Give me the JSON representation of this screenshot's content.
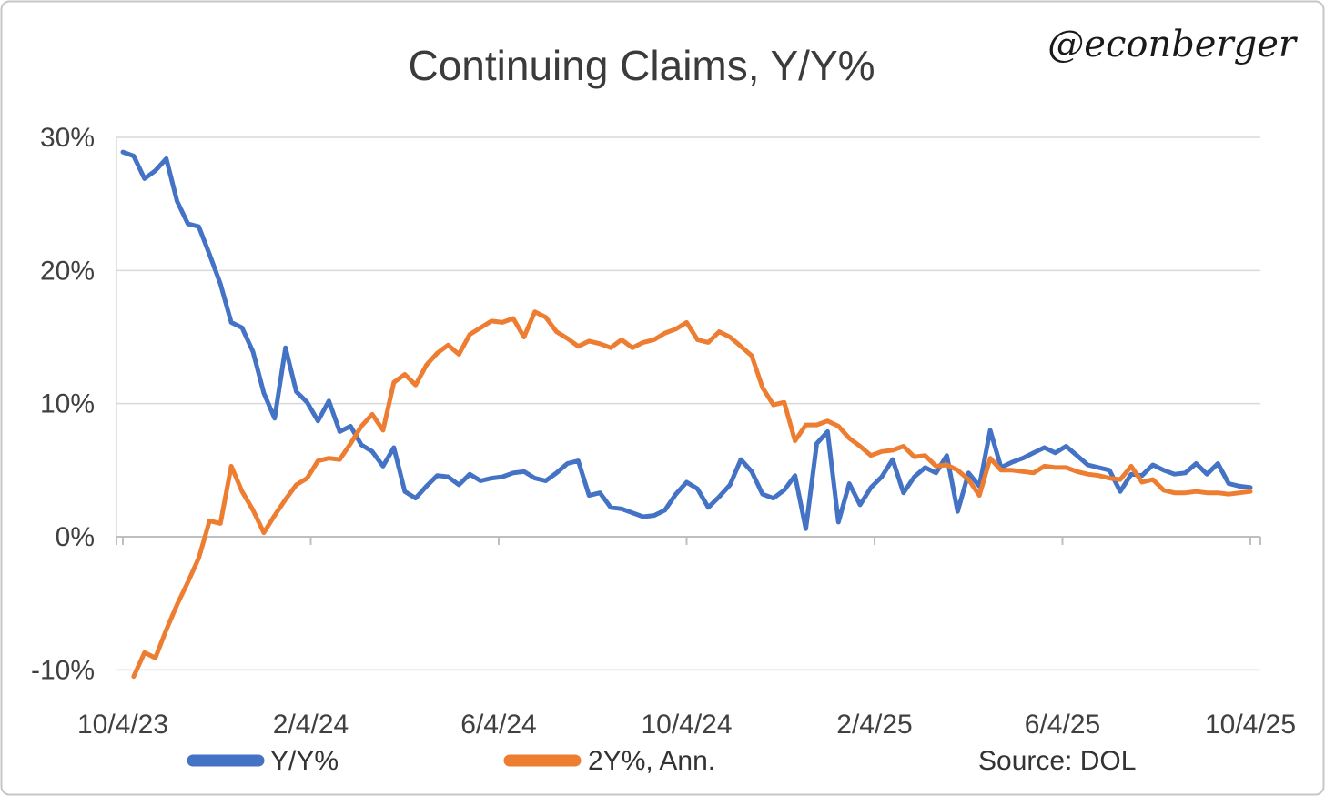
{
  "title": "Continuing Claims, Y/Y%",
  "watermark": "@econberger",
  "source": "Source: DOL",
  "legend": {
    "items": [
      {
        "label": "Y/Y%",
        "color": "#4472C4"
      },
      {
        "label": "2Y%, Ann.",
        "color": "#ED7D31"
      }
    ],
    "position": "bottom"
  },
  "colors": {
    "series_yy": "#4472C4",
    "series_2y": "#ED7D31",
    "gridline": "#D9D9D9",
    "axis": "#BFBFBF",
    "text": "#404040",
    "border": "#C8C6C4",
    "background": "#FFFFFF"
  },
  "chart_data": {
    "type": "line",
    "title": "Continuing Claims, Y/Y%",
    "xlabel": "",
    "ylabel": "",
    "x_unit": "weekly, 10/4/23 through 10/4/25",
    "x_tick_labels": [
      "10/4/23",
      "2/4/24",
      "6/4/24",
      "10/4/24",
      "2/4/25",
      "6/4/25",
      "10/4/25"
    ],
    "y_tick_labels": [
      "30%",
      "20%",
      "10%",
      "0%",
      "-10%"
    ],
    "y_tick_values": [
      30,
      20,
      10,
      0,
      -10
    ],
    "ylim": [
      -10.8,
      30
    ],
    "grid": true,
    "legend_position": "bottom",
    "series": [
      {
        "name": "Y/Y%",
        "color": "#4472C4",
        "values": [
          28.9,
          28.6,
          26.9,
          27.5,
          28.4,
          25.2,
          23.5,
          23.3,
          21.2,
          19.0,
          16.1,
          15.7,
          13.9,
          10.8,
          8.9,
          14.2,
          10.9,
          10.1,
          8.7,
          10.2,
          7.9,
          8.3,
          6.9,
          6.4,
          5.3,
          6.7,
          3.4,
          2.9,
          3.8,
          4.6,
          4.5,
          3.9,
          4.7,
          4.2,
          4.4,
          4.5,
          4.8,
          4.9,
          4.4,
          4.2,
          4.8,
          5.5,
          5.7,
          3.1,
          3.3,
          2.2,
          2.1,
          1.8,
          1.5,
          1.6,
          2.0,
          3.2,
          4.1,
          3.6,
          2.2,
          3.0,
          3.9,
          5.8,
          4.9,
          3.2,
          2.9,
          3.5,
          4.6,
          0.6,
          7.0,
          7.9,
          1.1,
          4.0,
          2.4,
          3.7,
          4.5,
          5.8,
          3.3,
          4.5,
          5.2,
          4.8,
          6.1,
          1.9,
          4.8,
          3.8,
          8.0,
          5.2,
          5.6,
          5.9,
          6.3,
          6.7,
          6.3,
          6.8,
          6.1,
          5.4,
          5.2,
          5.0,
          3.4,
          4.7,
          4.6,
          5.4,
          5.0,
          4.7,
          4.8,
          5.5,
          4.7,
          5.5,
          4.0,
          3.8,
          3.7
        ]
      },
      {
        "name": "2Y%, Ann.",
        "color": "#ED7D31",
        "values": [
          null,
          -10.5,
          -8.7,
          -9.1,
          -7.0,
          -5.1,
          -3.4,
          -1.6,
          1.2,
          1.0,
          5.3,
          3.4,
          2.0,
          0.3,
          1.6,
          2.8,
          3.9,
          4.4,
          5.7,
          5.9,
          5.8,
          7.0,
          8.3,
          9.2,
          8.0,
          11.6,
          12.2,
          11.4,
          12.9,
          13.8,
          14.4,
          13.7,
          15.2,
          15.7,
          16.2,
          16.1,
          16.4,
          15.0,
          16.9,
          16.5,
          15.4,
          14.9,
          14.3,
          14.7,
          14.5,
          14.2,
          14.8,
          14.2,
          14.6,
          14.8,
          15.3,
          15.6,
          16.1,
          14.8,
          14.6,
          15.4,
          15.0,
          14.3,
          13.6,
          11.2,
          9.9,
          10.1,
          7.2,
          8.4,
          8.4,
          8.7,
          8.3,
          7.4,
          6.8,
          6.1,
          6.4,
          6.5,
          6.8,
          6.0,
          6.1,
          5.3,
          5.4,
          5.0,
          4.3,
          3.1,
          5.9,
          5.0,
          5.0,
          4.9,
          4.8,
          5.3,
          5.2,
          5.2,
          4.9,
          4.7,
          4.6,
          4.4,
          4.3,
          5.3,
          4.1,
          4.3,
          3.5,
          3.3,
          3.3,
          3.4,
          3.3,
          3.3,
          3.2,
          3.3,
          3.4
        ]
      }
    ]
  }
}
